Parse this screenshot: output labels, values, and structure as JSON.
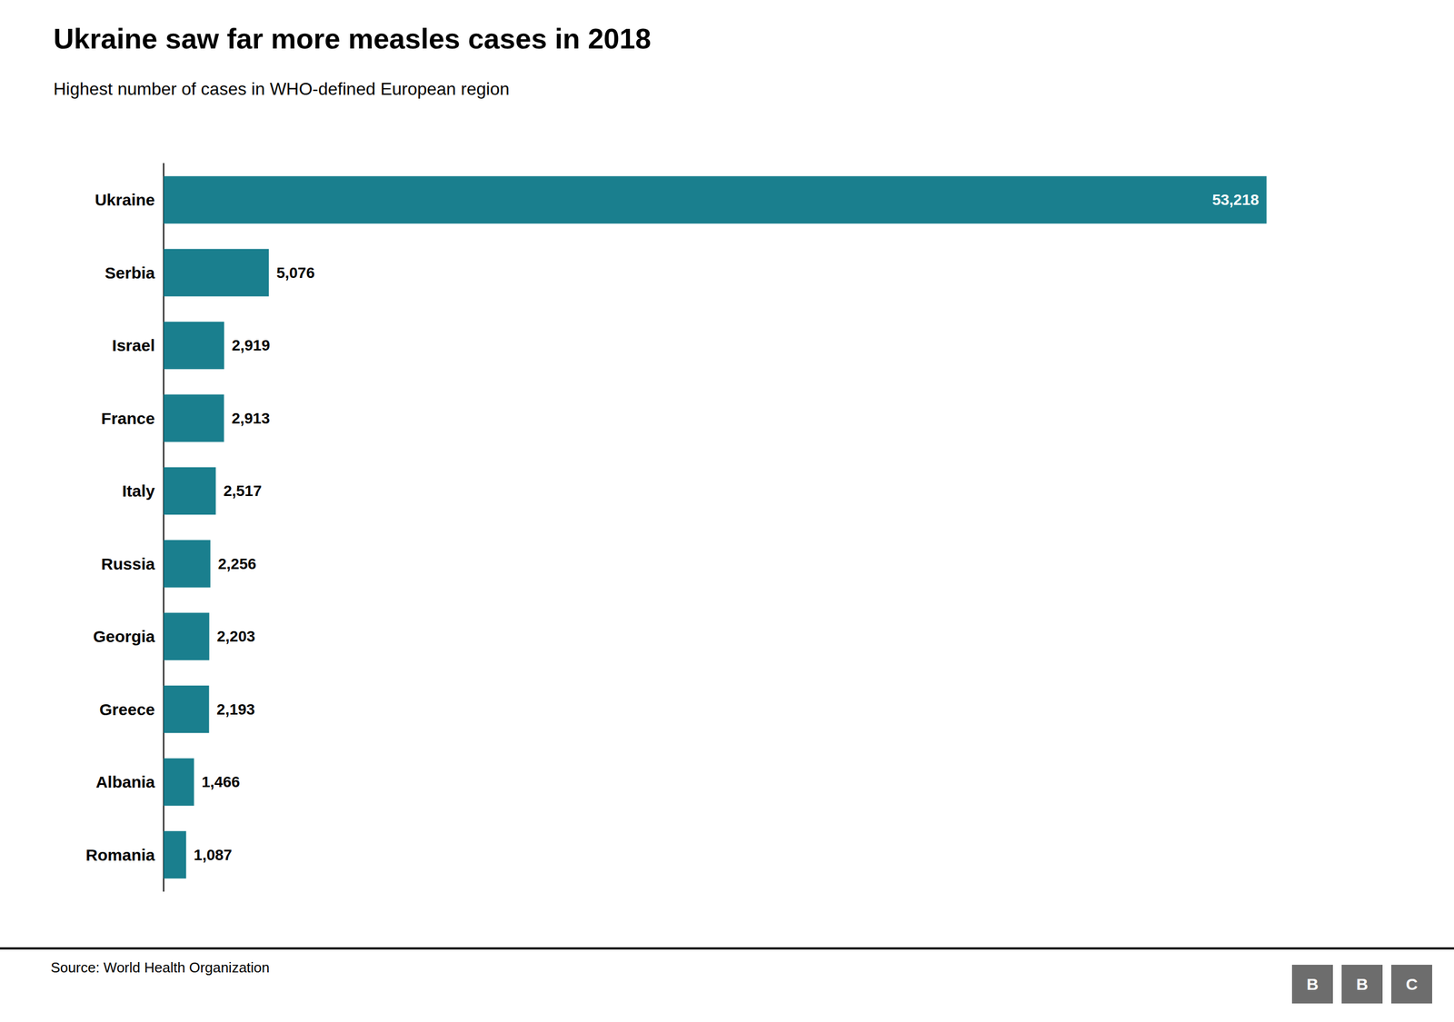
{
  "chart_data": {
    "type": "bar",
    "orientation": "horizontal",
    "title": "Ukraine saw far more measles cases in 2018",
    "subtitle": "Highest number of cases in WHO-defined European region",
    "source": "Source: World Health Organization",
    "logo": [
      "B",
      "B",
      "C"
    ],
    "categories": [
      "Ukraine",
      "Serbia",
      "Israel",
      "France",
      "Italy",
      "Russia",
      "Georgia",
      "Greece",
      "Albania",
      "Romania"
    ],
    "values": [
      53218,
      5076,
      2919,
      2913,
      2517,
      2256,
      2203,
      2193,
      1466,
      1087
    ],
    "value_labels": [
      "53,218",
      "5,076",
      "2,919",
      "2,913",
      "2,517",
      "2,256",
      "2,203",
      "2,193",
      "1,466",
      "1,087"
    ],
    "color": "#1a7f8e",
    "xlim": [
      0,
      57000
    ],
    "data_labels": true,
    "tick_labels": "y",
    "grid": false
  }
}
